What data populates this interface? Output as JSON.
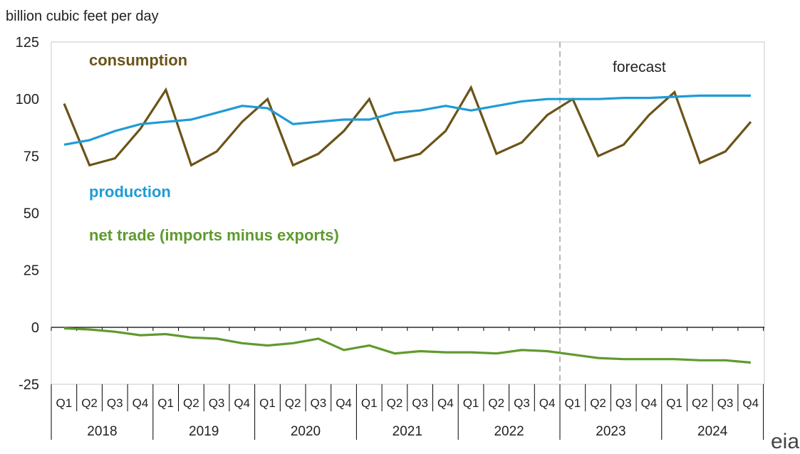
{
  "chart_data": {
    "type": "line",
    "ylabel": "billion cubic feet per day",
    "ylim": [
      -25,
      125
    ],
    "yticks": [
      "125",
      "100",
      "75",
      "50",
      "25",
      "0",
      "-25"
    ],
    "ytick_values": [
      125,
      100,
      75,
      50,
      25,
      0,
      -25
    ],
    "quarters": [
      "Q1",
      "Q2",
      "Q3",
      "Q4",
      "Q1",
      "Q2",
      "Q3",
      "Q4",
      "Q1",
      "Q2",
      "Q3",
      "Q4",
      "Q1",
      "Q2",
      "Q3",
      "Q4",
      "Q1",
      "Q2",
      "Q3",
      "Q4",
      "Q1",
      "Q2",
      "Q3",
      "Q4",
      "Q1",
      "Q2",
      "Q3",
      "Q4"
    ],
    "years": [
      "2018",
      "2019",
      "2020",
      "2021",
      "2022",
      "2023",
      "2024"
    ],
    "forecast_label": "forecast",
    "forecast_start_index": 20,
    "grid": false,
    "series": [
      {
        "name": "consumption",
        "color": "#6b5418",
        "values": [
          98,
          71,
          74,
          87,
          104,
          71,
          77,
          90,
          100,
          71,
          76,
          86,
          100,
          73,
          76,
          86,
          105,
          76,
          81,
          93,
          100,
          75,
          80,
          93,
          103,
          72,
          77,
          90
        ]
      },
      {
        "name": "production",
        "color": "#1f9bd7",
        "values": [
          80,
          82,
          86,
          89,
          90,
          91,
          94,
          97,
          96,
          89,
          90,
          91,
          91,
          94,
          95,
          97,
          95,
          97,
          99,
          100,
          100,
          100,
          100.5,
          100.5,
          101,
          101.5,
          101.5,
          101.5
        ]
      },
      {
        "name": "net trade (imports minus exports)",
        "color": "#5f9a2e",
        "values": [
          -0.5,
          -1,
          -2,
          -3.5,
          -3,
          -4.5,
          -5,
          -7,
          -8,
          -7,
          -5,
          -10,
          -8,
          -11.5,
          -10.5,
          -11,
          -11,
          -11.5,
          -10,
          -10.5,
          -12,
          -13.5,
          -14,
          -14,
          -14,
          -14.5,
          -14.5,
          -15.5
        ]
      }
    ]
  },
  "logo_text": "eia"
}
